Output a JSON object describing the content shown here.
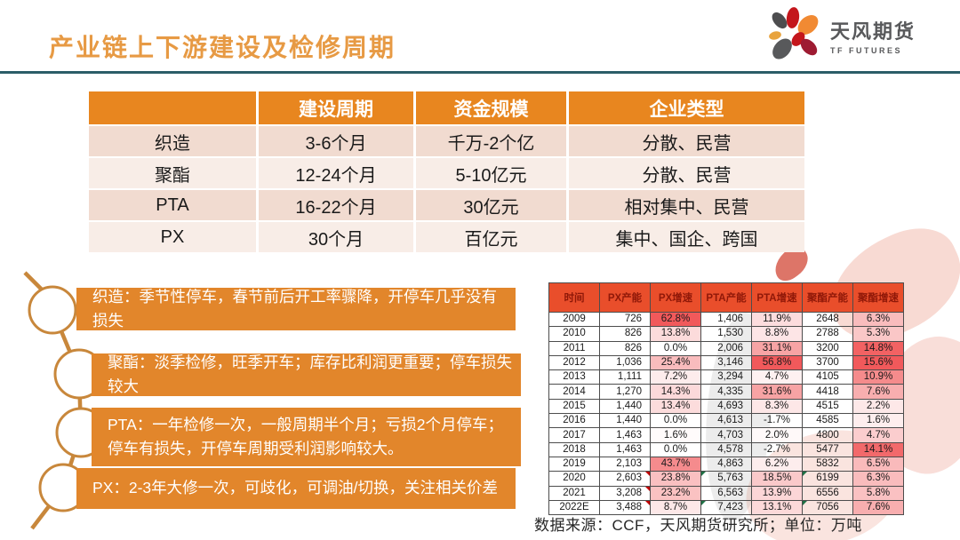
{
  "header": {
    "title": "产业链上下游建设及检修周期",
    "logo_cn": "天风期货",
    "logo_en": "TF FUTURES",
    "accent_orange": "#E2862B",
    "accent_teal": "#2B5D68"
  },
  "overview_table": {
    "columns": [
      "",
      "建设周期",
      "资金规模",
      "企业类型"
    ],
    "rows": [
      [
        "织造",
        "3-6个月",
        "千万-2个亿",
        "分散、民营"
      ],
      [
        "聚酯",
        "12-24个月",
        "5-10亿元",
        "分散、民营"
      ],
      [
        "PTA",
        "16-22个月",
        "30亿元",
        "相对集中、民营"
      ],
      [
        "PX",
        "30个月",
        "百亿元",
        "集中、国企、跨国"
      ]
    ]
  },
  "timeline_notes": [
    {
      "text": "织造：季节性停车，春节前后开工率骤降，开停车几乎没有损失"
    },
    {
      "text": "聚酯：淡季检修，旺季开车；库存比利润更重要；停车损失较大"
    },
    {
      "text": "PTA：一年检修一次，一般周期半个月；亏损2个月停车；停车有损失，开停车周期受利润影响较大。"
    },
    {
      "text": "PX：2-3年大修一次，可歧化，可调油/切换，关注相关价差"
    }
  ],
  "capacity_table": {
    "columns": [
      "时间",
      "PX产能",
      "PX增速",
      "PTA产能",
      "PTA增速",
      "聚酯产能",
      "聚酯增速"
    ],
    "growth_col_max": {
      "2": 62.8,
      "4": 56.8,
      "6": 15.6
    },
    "heat_max_color": "#F1595B",
    "rows": [
      {
        "c": [
          "2009",
          "726",
          "62.8%",
          "1,406",
          "11.9%",
          "2648",
          "6.3%"
        ]
      },
      {
        "c": [
          "2010",
          "826",
          "13.8%",
          "1,530",
          "8.8%",
          "2788",
          "5.3%"
        ]
      },
      {
        "c": [
          "2011",
          "826",
          "0.0%",
          "2,006",
          "31.1%",
          "3200",
          "14.8%"
        ]
      },
      {
        "c": [
          "2012",
          "1,036",
          "25.4%",
          "3,146",
          "56.8%",
          "3700",
          "15.6%"
        ]
      },
      {
        "c": [
          "2013",
          "1,111",
          "7.2%",
          "3,294",
          "4.7%",
          "4105",
          "10.9%"
        ]
      },
      {
        "c": [
          "2014",
          "1,270",
          "14.3%",
          "4,335",
          "31.6%",
          "4418",
          "7.6%"
        ]
      },
      {
        "c": [
          "2015",
          "1,440",
          "13.4%",
          "4,693",
          "8.3%",
          "4515",
          "2.2%"
        ]
      },
      {
        "c": [
          "2016",
          "1,440",
          "0.0%",
          "4,613",
          "-1.7%",
          "4585",
          "1.6%"
        ]
      },
      {
        "c": [
          "2017",
          "1,463",
          "1.6%",
          "4,703",
          "2.0%",
          "4800",
          "4.7%"
        ]
      },
      {
        "c": [
          "2018",
          "1,463",
          "0.0%",
          "4,578",
          "-2.7%",
          "5477",
          "14.1%"
        ]
      },
      {
        "c": [
          "2019",
          "2,103",
          "43.7%",
          "4,863",
          "6.2%",
          "5832",
          "6.5%"
        ]
      },
      {
        "c": [
          "2020",
          "2,603",
          "23.8%",
          "5,763",
          "18.5%",
          "6199",
          "6.3%"
        ],
        "red": [
          1
        ],
        "green": [
          3,
          5
        ]
      },
      {
        "c": [
          "2021",
          "3,208",
          "23.2%",
          "6,563",
          "13.9%",
          "6556",
          "5.8%"
        ],
        "red": [
          1
        ]
      },
      {
        "c": [
          "2022E",
          "3,488",
          "8.7%",
          "7,423",
          "13.1%",
          "7056",
          "7.6%"
        ],
        "red": [
          1
        ],
        "green": [
          3,
          5
        ]
      }
    ]
  },
  "caption": "数据来源：CCF，天风期货研究所；单位：万吨"
}
